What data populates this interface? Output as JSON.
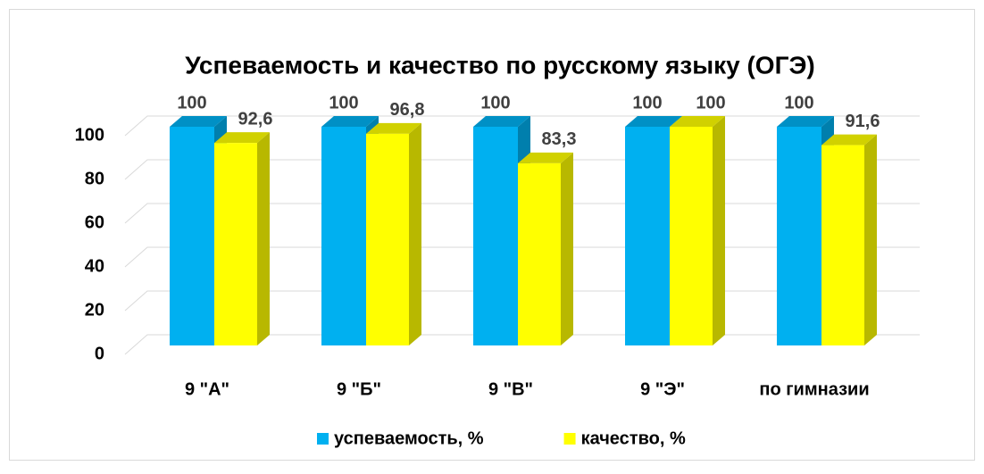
{
  "chart_data": {
    "type": "bar3d",
    "title": "Успеваемость и качество по русскому языку (ОГЭ)",
    "categories": [
      "9 \"А\"",
      "9 \"Б\"",
      "9 \"В\"",
      "9 \"Э\"",
      "по гимназии"
    ],
    "series": [
      {
        "name": "успеваемость, %",
        "color": "#00b0f0",
        "values": [
          100,
          100,
          100,
          100,
          100
        ]
      },
      {
        "name": "качество, %",
        "color": "#ffff00",
        "values": [
          92.6,
          96.8,
          83.3,
          100,
          91.6
        ],
        "value_labels": [
          "92,6",
          "96,8",
          "83,3",
          "100",
          "91,6"
        ]
      }
    ],
    "ylim": [
      0,
      100
    ],
    "yticks": [
      0,
      20,
      40,
      60,
      80,
      100
    ],
    "grid": true,
    "legend": "bottom"
  }
}
